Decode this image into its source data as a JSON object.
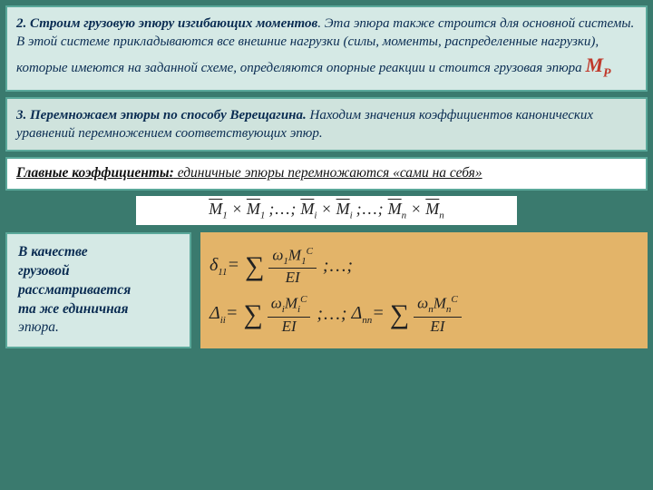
{
  "panel1": {
    "title": "2. Строим грузовую эпюру изгибающих моментов",
    "body": ". Эта эпюра также строится для основной системы. В этой системе прикладываются все внешние нагрузки (силы, моменты, распределенные нагрузки), которые имеются на заданной схеме, определяются опорные реакции и стоится грузовая эпюра ",
    "mp": "M",
    "mpSub": "P"
  },
  "panel2": {
    "title": "3. Перемножаем эпюры по способу Верещагина.",
    "body": " Находим значения коэффициентов канонических уравнений перемножением соответствующих эпюр."
  },
  "panel3": {
    "head": "Главные коэффициенты:",
    "sub": " единичные эпюры перемножаются «сами на себя»"
  },
  "formulaTop": {
    "t1": "M̄",
    "s1": "1",
    "x": "×",
    "dots": ";…;",
    "si": "i",
    "sn": "n"
  },
  "panel4": {
    "l1": "В качестве",
    "l2": "грузовой",
    "l3": "рассматривается",
    "l4": "та же единичная",
    "l5": "эпюра."
  },
  "eq1": {
    "lhs_delta": "δ",
    "lhs_sub": "11",
    "num_omega": "ω",
    "num_sub": "1",
    "num_M": "M",
    "num_Msub": "1",
    "num_sup": "C",
    "den": "EI",
    "trail": ";…;"
  },
  "eq2": {
    "lhs_delta": "Δ",
    "lhs_sub": "ii",
    "num_omega": "ω",
    "num_sub": "i",
    "num_M": "M",
    "num_Msub": "i",
    "num_sup": "C",
    "den": "EI",
    "mid": ";…;",
    "lhs2_sub": "nn",
    "num2_sub": "n",
    "num2_Msub": "n"
  },
  "colors": {
    "bg": "#3a7a6e",
    "panelLight": "#d5e9e5",
    "panelMid": "#cfe3dd",
    "panelBorder": "#5aa89a",
    "formulaBg": "#e3b469",
    "textDark": "#0a2c52",
    "accentRed": "#c0392b"
  }
}
